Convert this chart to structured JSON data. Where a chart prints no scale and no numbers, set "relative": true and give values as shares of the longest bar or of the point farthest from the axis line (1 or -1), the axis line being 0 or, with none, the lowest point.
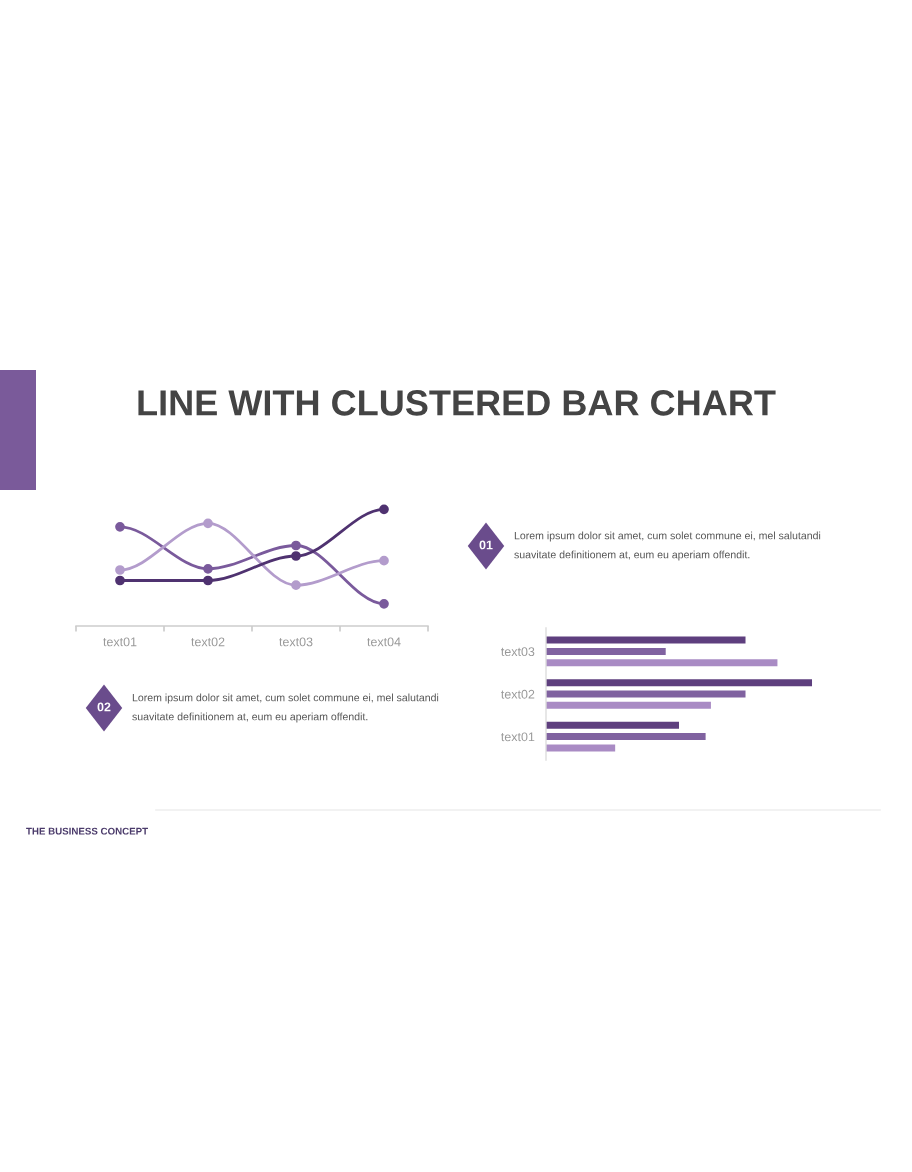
{
  "chart_data": [
    {
      "type": "line",
      "title": "LINE WITH CLUSTERED BAR CHART",
      "relative": true,
      "marker": "circle",
      "line_style": "solid",
      "grid": false,
      "legend": false,
      "tick_labels": "x",
      "categories": [
        "text01",
        "text02",
        "text03",
        "text04"
      ],
      "series": [
        {
          "color": "#7a5a9c",
          "values": [
            0.85,
            0.49,
            0.69,
            0.19
          ]
        },
        {
          "color": "#b39ccc",
          "values": [
            0.48,
            0.88,
            0.35,
            0.56
          ]
        },
        {
          "color": "#4f3270",
          "values": [
            0.39,
            0.39,
            0.6,
            1.0
          ]
        }
      ],
      "annotations": [
        "02",
        "Lorem ipsum dolor sit amet, cum solet commune ei, mel salutandi\nsuavitate definitionem at, eum eu aperiam offendit.",
        "THE BUSINESS CONCEPT"
      ]
    },
    {
      "type": "bar",
      "orientation": "horizontal",
      "relative": true,
      "grid": false,
      "legend": false,
      "tick_labels": "y",
      "categories": [
        "text03",
        "text02",
        "text01"
      ],
      "series": [
        {
          "color": "#5e3f7e",
          "values": [
            0.75,
            1.0,
            0.5
          ]
        },
        {
          "color": "#8062a0",
          "values": [
            0.45,
            0.75,
            0.6
          ]
        },
        {
          "color": "#a98bc4",
          "values": [
            0.87,
            0.62,
            0.26
          ]
        }
      ],
      "annotations": [
        "01",
        "Lorem ipsum dolor sit amet, cum solet commune ei, mel salutandi\nsuavitate definitionem at, eum eu aperiam offendit."
      ]
    }
  ]
}
